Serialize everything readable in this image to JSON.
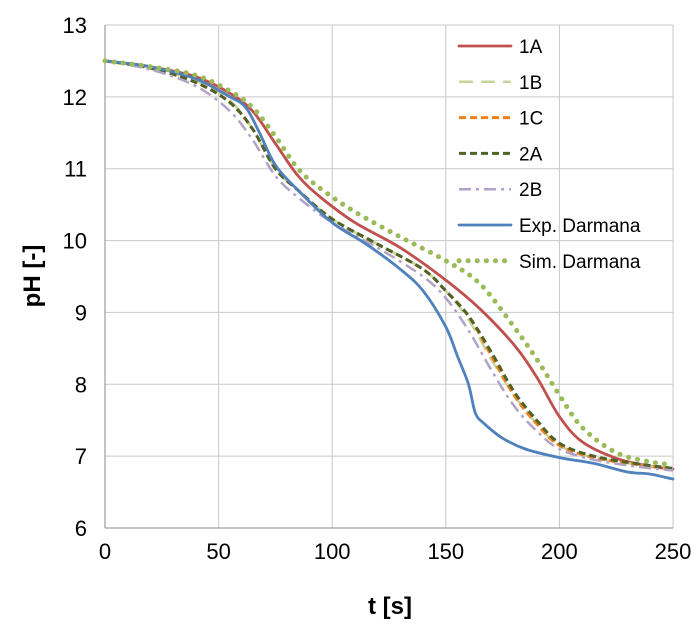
{
  "chart_data": {
    "type": "line",
    "title": "",
    "xlabel": "t [s]",
    "ylabel": "pH [-]",
    "xlim": [
      0,
      250
    ],
    "ylim": [
      6,
      13
    ],
    "xticks": [
      0,
      50,
      100,
      150,
      200,
      250
    ],
    "yticks": [
      6,
      7,
      8,
      9,
      10,
      11,
      12,
      13
    ],
    "grid": true,
    "legend_position": "top-right",
    "series": [
      {
        "name": "1A",
        "color": "#C0504D",
        "style": "solid",
        "points": [
          [
            0,
            12.5
          ],
          [
            20,
            12.42
          ],
          [
            40,
            12.28
          ],
          [
            55,
            12.05
          ],
          [
            65,
            11.8
          ],
          [
            75,
            11.35
          ],
          [
            85,
            10.9
          ],
          [
            95,
            10.6
          ],
          [
            110,
            10.25
          ],
          [
            130,
            9.9
          ],
          [
            150,
            9.45
          ],
          [
            165,
            9.05
          ],
          [
            180,
            8.55
          ],
          [
            190,
            8.1
          ],
          [
            200,
            7.55
          ],
          [
            210,
            7.2
          ],
          [
            225,
            6.97
          ],
          [
            240,
            6.86
          ],
          [
            250,
            6.82
          ]
        ]
      },
      {
        "name": "1B",
        "color": "#C3D69B",
        "style": "longdash",
        "points": [
          [
            0,
            12.5
          ],
          [
            20,
            12.4
          ],
          [
            40,
            12.22
          ],
          [
            55,
            11.95
          ],
          [
            65,
            11.55
          ],
          [
            75,
            11.0
          ],
          [
            85,
            10.7
          ],
          [
            100,
            10.3
          ],
          [
            120,
            9.95
          ],
          [
            140,
            9.6
          ],
          [
            150,
            9.3
          ],
          [
            160,
            8.9
          ],
          [
            170,
            8.35
          ],
          [
            180,
            7.85
          ],
          [
            190,
            7.45
          ],
          [
            200,
            7.15
          ],
          [
            215,
            6.98
          ],
          [
            235,
            6.88
          ],
          [
            250,
            6.82
          ]
        ]
      },
      {
        "name": "1C",
        "color": "#F0801A",
        "style": "dash",
        "points": [
          [
            0,
            12.5
          ],
          [
            20,
            12.4
          ],
          [
            40,
            12.2
          ],
          [
            55,
            11.92
          ],
          [
            65,
            11.55
          ],
          [
            75,
            11.0
          ],
          [
            85,
            10.7
          ],
          [
            100,
            10.3
          ],
          [
            120,
            9.95
          ],
          [
            140,
            9.6
          ],
          [
            150,
            9.3
          ],
          [
            160,
            8.95
          ],
          [
            170,
            8.4
          ],
          [
            180,
            7.85
          ],
          [
            190,
            7.45
          ],
          [
            200,
            7.15
          ],
          [
            215,
            6.98
          ],
          [
            235,
            6.88
          ],
          [
            250,
            6.82
          ]
        ]
      },
      {
        "name": "2A",
        "color": "#4F6228",
        "style": "dash",
        "points": [
          [
            0,
            12.5
          ],
          [
            20,
            12.4
          ],
          [
            40,
            12.2
          ],
          [
            55,
            11.92
          ],
          [
            65,
            11.55
          ],
          [
            75,
            11.0
          ],
          [
            85,
            10.7
          ],
          [
            100,
            10.3
          ],
          [
            120,
            9.95
          ],
          [
            140,
            9.6
          ],
          [
            150,
            9.3
          ],
          [
            160,
            8.95
          ],
          [
            170,
            8.45
          ],
          [
            180,
            7.9
          ],
          [
            190,
            7.5
          ],
          [
            200,
            7.18
          ],
          [
            215,
            7.0
          ],
          [
            235,
            6.89
          ],
          [
            250,
            6.83
          ]
        ]
      },
      {
        "name": "2B",
        "color": "#B3A2C7",
        "style": "dashdot",
        "points": [
          [
            0,
            12.5
          ],
          [
            20,
            12.38
          ],
          [
            40,
            12.15
          ],
          [
            55,
            11.8
          ],
          [
            65,
            11.4
          ],
          [
            75,
            10.9
          ],
          [
            85,
            10.6
          ],
          [
            100,
            10.25
          ],
          [
            120,
            9.9
          ],
          [
            140,
            9.5
          ],
          [
            150,
            9.2
          ],
          [
            160,
            8.75
          ],
          [
            170,
            8.2
          ],
          [
            180,
            7.7
          ],
          [
            190,
            7.35
          ],
          [
            200,
            7.1
          ],
          [
            215,
            6.95
          ],
          [
            235,
            6.85
          ],
          [
            250,
            6.8
          ]
        ]
      },
      {
        "name": "Exp. Darmana",
        "color": "#4F81BD",
        "style": "solid",
        "points": [
          [
            0,
            12.5
          ],
          [
            20,
            12.42
          ],
          [
            40,
            12.25
          ],
          [
            55,
            12.0
          ],
          [
            62,
            11.85
          ],
          [
            68,
            11.5
          ],
          [
            75,
            11.05
          ],
          [
            85,
            10.7
          ],
          [
            100,
            10.25
          ],
          [
            115,
            9.95
          ],
          [
            130,
            9.6
          ],
          [
            140,
            9.3
          ],
          [
            150,
            8.8
          ],
          [
            155,
            8.4
          ],
          [
            160,
            8.0
          ],
          [
            163,
            7.6
          ],
          [
            167,
            7.45
          ],
          [
            175,
            7.25
          ],
          [
            185,
            7.1
          ],
          [
            200,
            6.98
          ],
          [
            215,
            6.9
          ],
          [
            230,
            6.78
          ],
          [
            240,
            6.75
          ],
          [
            250,
            6.68
          ]
        ]
      },
      {
        "name": "Sim. Darmana",
        "color": "#9BBB59",
        "style": "dot",
        "points": [
          [
            0,
            12.5
          ],
          [
            20,
            12.42
          ],
          [
            40,
            12.3
          ],
          [
            55,
            12.08
          ],
          [
            65,
            11.85
          ],
          [
            75,
            11.45
          ],
          [
            85,
            11.0
          ],
          [
            95,
            10.72
          ],
          [
            110,
            10.4
          ],
          [
            130,
            10.05
          ],
          [
            150,
            9.72
          ],
          [
            165,
            9.4
          ],
          [
            180,
            8.8
          ],
          [
            190,
            8.35
          ],
          [
            200,
            7.85
          ],
          [
            210,
            7.4
          ],
          [
            225,
            7.05
          ],
          [
            240,
            6.92
          ],
          [
            250,
            6.88
          ]
        ]
      }
    ]
  }
}
